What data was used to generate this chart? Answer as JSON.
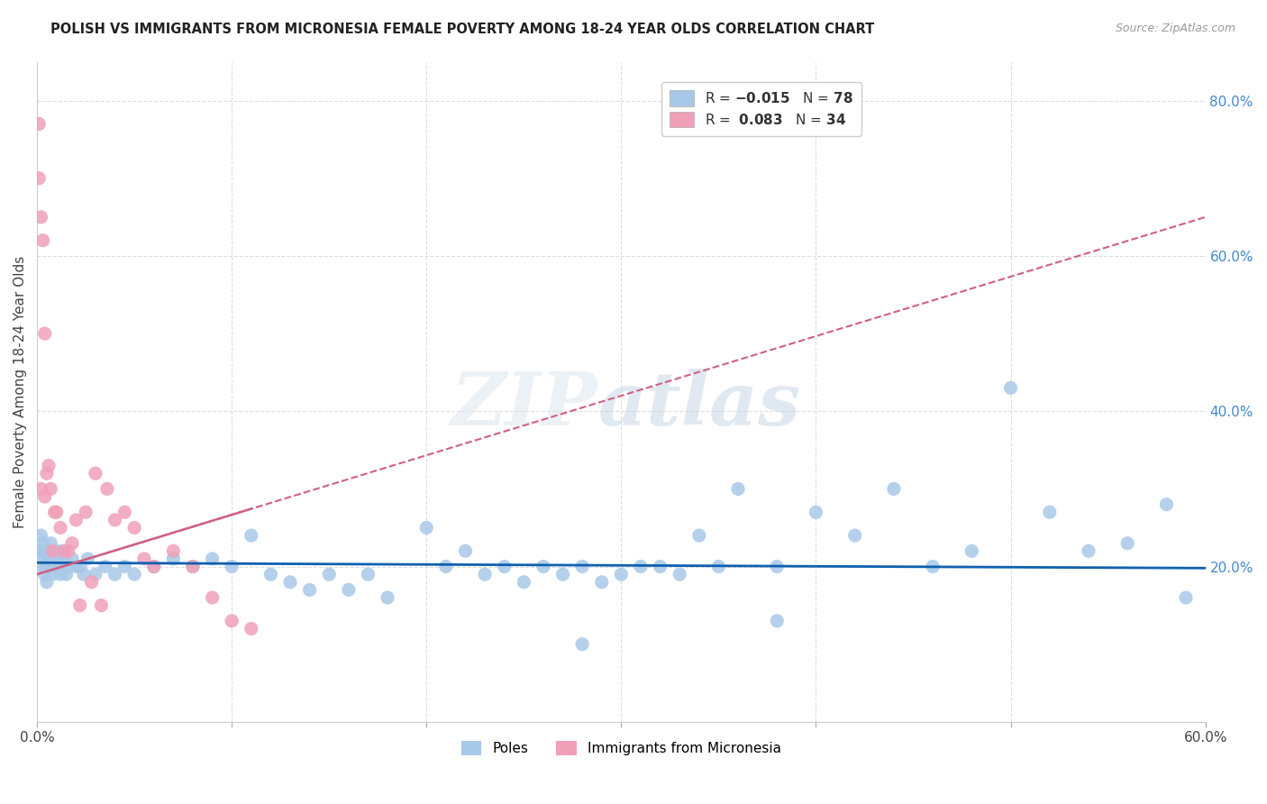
{
  "title": "POLISH VS IMMIGRANTS FROM MICRONESIA FEMALE POVERTY AMONG 18-24 YEAR OLDS CORRELATION CHART",
  "source": "Source: ZipAtlas.com",
  "ylabel": "Female Poverty Among 18-24 Year Olds",
  "xlim": [
    0.0,
    0.6
  ],
  "ylim": [
    0.0,
    0.85
  ],
  "ytick_labels_right": [
    "20.0%",
    "40.0%",
    "60.0%",
    "80.0%"
  ],
  "ytick_vals_right": [
    0.2,
    0.4,
    0.6,
    0.8
  ],
  "color_poles": "#a8c8e8",
  "color_micronesia": "#f0a0b8",
  "color_poles_line": "#1060b0",
  "color_micronesia_line": "#d06080",
  "poles_line_y0": 0.205,
  "poles_line_y1": 0.198,
  "micro_line_y0": 0.19,
  "micro_line_y1": 0.65,
  "poles_x": [
    0.001,
    0.002,
    0.002,
    0.003,
    0.003,
    0.004,
    0.004,
    0.005,
    0.005,
    0.006,
    0.006,
    0.007,
    0.007,
    0.008,
    0.008,
    0.009,
    0.01,
    0.01,
    0.011,
    0.012,
    0.013,
    0.014,
    0.015,
    0.016,
    0.018,
    0.02,
    0.022,
    0.024,
    0.026,
    0.03,
    0.035,
    0.04,
    0.045,
    0.05,
    0.06,
    0.07,
    0.08,
    0.09,
    0.1,
    0.11,
    0.12,
    0.13,
    0.14,
    0.15,
    0.16,
    0.17,
    0.18,
    0.2,
    0.21,
    0.22,
    0.23,
    0.24,
    0.25,
    0.26,
    0.27,
    0.28,
    0.29,
    0.3,
    0.31,
    0.32,
    0.33,
    0.34,
    0.35,
    0.36,
    0.38,
    0.4,
    0.42,
    0.44,
    0.46,
    0.48,
    0.5,
    0.52,
    0.54,
    0.56,
    0.58,
    0.59,
    0.28,
    0.38
  ],
  "poles_y": [
    0.22,
    0.24,
    0.21,
    0.2,
    0.23,
    0.19,
    0.22,
    0.2,
    0.18,
    0.22,
    0.21,
    0.2,
    0.23,
    0.19,
    0.22,
    0.21,
    0.2,
    0.22,
    0.21,
    0.19,
    0.22,
    0.21,
    0.19,
    0.2,
    0.21,
    0.2,
    0.2,
    0.19,
    0.21,
    0.19,
    0.2,
    0.19,
    0.2,
    0.19,
    0.2,
    0.21,
    0.2,
    0.21,
    0.2,
    0.24,
    0.19,
    0.18,
    0.17,
    0.19,
    0.17,
    0.19,
    0.16,
    0.25,
    0.2,
    0.22,
    0.19,
    0.2,
    0.18,
    0.2,
    0.19,
    0.2,
    0.18,
    0.19,
    0.2,
    0.2,
    0.19,
    0.24,
    0.2,
    0.3,
    0.2,
    0.27,
    0.24,
    0.3,
    0.2,
    0.22,
    0.43,
    0.27,
    0.22,
    0.23,
    0.28,
    0.16,
    0.1,
    0.13
  ],
  "micronesia_x": [
    0.001,
    0.001,
    0.002,
    0.002,
    0.003,
    0.004,
    0.004,
    0.005,
    0.006,
    0.007,
    0.008,
    0.009,
    0.01,
    0.012,
    0.014,
    0.016,
    0.018,
    0.02,
    0.022,
    0.025,
    0.028,
    0.03,
    0.033,
    0.036,
    0.04,
    0.045,
    0.05,
    0.055,
    0.06,
    0.07,
    0.08,
    0.09,
    0.1,
    0.11
  ],
  "micronesia_y": [
    0.77,
    0.7,
    0.65,
    0.3,
    0.62,
    0.5,
    0.29,
    0.32,
    0.33,
    0.3,
    0.22,
    0.27,
    0.27,
    0.25,
    0.22,
    0.22,
    0.23,
    0.26,
    0.15,
    0.27,
    0.18,
    0.32,
    0.15,
    0.3,
    0.26,
    0.27,
    0.25,
    0.21,
    0.2,
    0.22,
    0.2,
    0.16,
    0.13,
    0.12
  ],
  "grid_color": "#dddddd",
  "bg_color": "#ffffff"
}
